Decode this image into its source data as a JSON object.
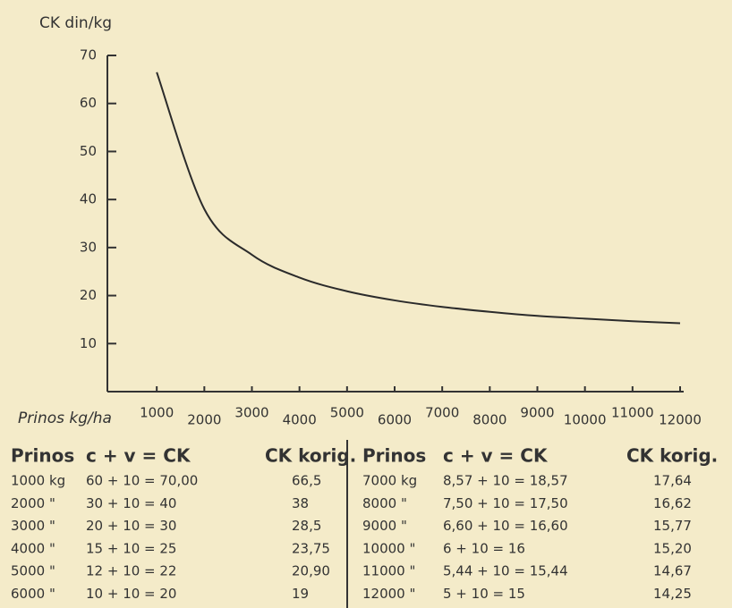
{
  "chart_data": {
    "type": "line",
    "ylabel": "CK din/kg",
    "xlabel": "Prinos kg/ha",
    "x": [
      1000,
      2000,
      3000,
      4000,
      5000,
      6000,
      7000,
      8000,
      9000,
      10000,
      11000,
      12000
    ],
    "values": [
      66.5,
      38,
      28.5,
      23.75,
      20.9,
      19,
      17.64,
      16.62,
      15.77,
      15.2,
      14.67,
      14.25
    ],
    "color": "#2b2b2b",
    "xlim": [
      0,
      12000
    ],
    "xticks": [
      1000,
      2000,
      3000,
      4000,
      5000,
      6000,
      7000,
      8000,
      9000,
      10000,
      11000,
      12000
    ],
    "ylim": [
      0,
      70
    ],
    "yticks": [
      10,
      20,
      30,
      40,
      50,
      60,
      70
    ]
  },
  "tables": [
    {
      "columns": [
        "Prinos",
        "c + v = CK",
        "CK korig."
      ],
      "rows": [
        [
          "1000 kg",
          "60 + 10 = 70,00",
          "66,5"
        ],
        [
          "2000 \"",
          "30 + 10 = 40",
          "38"
        ],
        [
          "3000 \"",
          "20 + 10 = 30",
          "28,5"
        ],
        [
          "4000 \"",
          "15 + 10 = 25",
          "23,75"
        ],
        [
          "5000 \"",
          "12 + 10 = 22",
          "20,90"
        ],
        [
          "6000 \"",
          "10 + 10 = 20",
          "19"
        ]
      ]
    },
    {
      "columns": [
        "Prinos",
        "c + v = CK",
        "CK korig."
      ],
      "rows": [
        [
          "7000 kg",
          "8,57 + 10 = 18,57",
          "17,64"
        ],
        [
          "8000 \"",
          "7,50 + 10 = 17,50",
          "16,62"
        ],
        [
          "9000 \"",
          "6,60 + 10 = 16,60",
          "15,77"
        ],
        [
          "10000 \"",
          "6 + 10 = 16",
          "15,20"
        ],
        [
          "11000 \"",
          "5,44 + 10 = 15,44",
          "14,67"
        ],
        [
          "12000 \"",
          "5 + 10 = 15",
          "14,25"
        ]
      ]
    }
  ]
}
